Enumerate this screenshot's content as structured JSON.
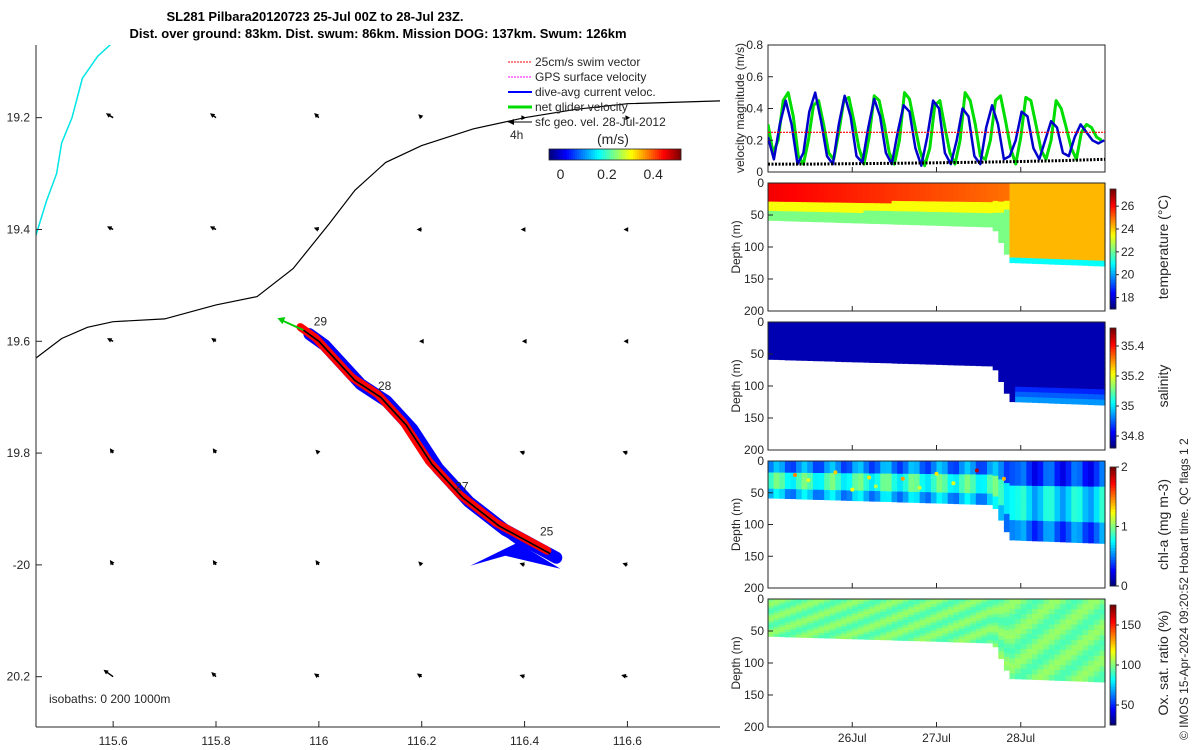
{
  "title_line1": "SL281 Pilbara20120723 25-Jul 00Z to 28-Jul 23Z.",
  "title_line2": "Dist. over ground: 83km. Dist. swum: 86km. Mission DOG: 137km. Swum: 126km",
  "credit": "© IMOS 15-Apr-2024 09:20:52 Hobart time. QC flags 1  2",
  "colors": {
    "swim": "#ff0000",
    "gps": "#ff00ff",
    "diveavg": "#0000ff",
    "net": "#00cc00",
    "sfc": "#000000",
    "coast": "#00e5e5"
  },
  "chart_data": [
    {
      "type": "map",
      "name": "track-map",
      "xlim": [
        115.45,
        116.78
      ],
      "ylim": [
        -20.29,
        -19.07
      ],
      "xticks": [
        115.6,
        115.8,
        116,
        116.2,
        116.4,
        116.6
      ],
      "xtick_labels": [
        "115.6",
        "115.8",
        "116",
        "116.2",
        "116.4",
        "116.6"
      ],
      "yticks": [
        -19.2,
        -19.4,
        -19.6,
        -19.8,
        -20,
        -20.2
      ],
      "ytick_labels": [
        "19.2",
        "19.4",
        "19.6",
        "19.8",
        "-20",
        "20.2"
      ],
      "legend": {
        "items": [
          {
            "label": "25cm/s swim vector",
            "color": "#ff0000"
          },
          {
            "label": "GPS surface velocity",
            "color": "#ff00ff"
          },
          {
            "label": "dive-avg current veloc.",
            "color": "#0000ff"
          },
          {
            "label": "net glider velocity",
            "color": "#00cc00"
          },
          {
            "label": "sfc geo. vel. 28-Jul-2012",
            "color": "#000000"
          }
        ],
        "scale_note": "4h"
      },
      "colorbar": {
        "label": "(m/s)",
        "ticks": [
          "0",
          "0.2",
          "0.4"
        ],
        "range": [
          -0.05,
          0.52
        ]
      },
      "isobath_label": "isobaths: 0   200  1000m",
      "day_labels": [
        {
          "text": "29",
          "lon": 115.99,
          "lat": -19.565
        },
        {
          "text": "28",
          "lon": 116.115,
          "lat": -19.68
        },
        {
          "text": "27",
          "lon": 116.265,
          "lat": -19.86
        },
        {
          "text": "25",
          "lon": 116.43,
          "lat": -19.94
        }
      ],
      "isobath_200": [
        [
          115.45,
          -19.63
        ],
        [
          115.5,
          -19.595
        ],
        [
          115.55,
          -19.575
        ],
        [
          115.6,
          -19.565
        ],
        [
          115.7,
          -19.56
        ],
        [
          115.8,
          -19.535
        ],
        [
          115.88,
          -19.52
        ],
        [
          115.95,
          -19.47
        ],
        [
          116.02,
          -19.39
        ],
        [
          116.07,
          -19.33
        ],
        [
          116.13,
          -19.28
        ],
        [
          116.2,
          -19.25
        ],
        [
          116.3,
          -19.22
        ],
        [
          116.4,
          -19.2
        ],
        [
          116.5,
          -19.185
        ],
        [
          116.6,
          -19.175
        ],
        [
          116.78,
          -19.17
        ]
      ],
      "isobath_0": [
        [
          115.45,
          -19.41
        ],
        [
          115.47,
          -19.35
        ],
        [
          115.49,
          -19.3
        ],
        [
          115.5,
          -19.245
        ],
        [
          115.52,
          -19.2
        ],
        [
          115.54,
          -19.13
        ],
        [
          115.57,
          -19.09
        ],
        [
          115.6,
          -19.065
        ]
      ],
      "track": [
        [
          116.45,
          -19.98
        ],
        [
          116.35,
          -19.93
        ],
        [
          116.28,
          -19.88
        ],
        [
          116.22,
          -19.82
        ],
        [
          116.17,
          -19.75
        ],
        [
          116.12,
          -19.7
        ],
        [
          116.07,
          -19.67
        ],
        [
          116.0,
          -19.6
        ],
        [
          115.97,
          -19.58
        ]
      ],
      "track_blue_width": 12,
      "track_red_width": 8,
      "geo_vectors": {
        "lons": [
          115.6,
          115.8,
          116.0,
          116.2,
          116.4,
          116.6
        ],
        "lats": [
          -19.2,
          -19.4,
          -19.6,
          -19.8,
          -20.0,
          -20.2
        ],
        "u": [
          [
            -0.05,
            -0.04,
            -0.03,
            -0.02,
            0.0,
            0.01
          ],
          [
            -0.04,
            -0.04,
            -0.03,
            -0.03,
            -0.02,
            -0.02
          ],
          [
            -0.04,
            -0.03,
            -0.02,
            -0.01,
            -0.01,
            -0.02
          ],
          [
            -0.02,
            -0.02,
            -0.02,
            -0.02,
            -0.03,
            -0.03
          ],
          [
            -0.02,
            -0.02,
            -0.02,
            -0.02,
            -0.03,
            -0.03
          ],
          [
            -0.07,
            -0.03,
            -0.03,
            -0.03,
            -0.03,
            -0.04
          ]
        ],
        "v": [
          [
            0.03,
            0.03,
            0.03,
            0.02,
            0.0,
            0.0
          ],
          [
            0.02,
            0.02,
            0.01,
            0.0,
            0.0,
            0.0
          ],
          [
            0.02,
            0.02,
            0.01,
            0.0,
            0.0,
            0.0
          ],
          [
            0.03,
            0.03,
            0.02,
            0.02,
            0.01,
            0.01
          ],
          [
            0.03,
            0.03,
            0.03,
            0.02,
            0.01,
            0.01
          ],
          [
            0.05,
            0.03,
            0.02,
            0.02,
            0.01,
            0.01
          ]
        ]
      }
    },
    {
      "type": "line",
      "name": "velocity-magnitude",
      "ylabel": "velocity magnitude (m/s)",
      "ylim": [
        0,
        0.8
      ],
      "yticks": [
        0,
        0.2,
        0.4,
        0.6,
        0.8
      ],
      "ytick_labels": [
        "0",
        "0.2",
        "0.4",
        "0.6",
        "0.8"
      ],
      "xlim": [
        25.0,
        29.0
      ],
      "series": [
        {
          "name": "net glider velocity",
          "color": "#00dd00",
          "x": [
            25.0,
            25.06,
            25.12,
            25.18,
            25.24,
            25.3,
            25.36,
            25.42,
            25.48,
            25.54,
            25.6,
            25.66,
            25.72,
            25.78,
            25.84,
            25.9,
            25.96,
            26.02,
            26.08,
            26.14,
            26.2,
            26.26,
            26.32,
            26.38,
            26.44,
            26.5,
            26.56,
            26.62,
            26.68,
            26.74,
            26.8,
            26.86,
            26.92,
            26.98,
            27.04,
            27.1,
            27.16,
            27.22,
            27.28,
            27.34,
            27.4,
            27.46,
            27.52,
            27.58,
            27.64,
            27.7,
            27.76,
            27.82,
            27.88,
            27.94,
            28.0,
            28.06,
            28.12,
            28.18,
            28.24,
            28.3,
            28.36,
            28.42,
            28.48,
            28.54,
            28.6,
            28.66,
            28.72,
            28.78,
            28.84,
            28.9,
            28.96
          ],
          "values": [
            0.3,
            0.12,
            0.2,
            0.45,
            0.5,
            0.35,
            0.1,
            0.05,
            0.2,
            0.42,
            0.45,
            0.3,
            0.12,
            0.08,
            0.25,
            0.45,
            0.47,
            0.32,
            0.15,
            0.05,
            0.22,
            0.48,
            0.45,
            0.3,
            0.12,
            0.05,
            0.2,
            0.5,
            0.46,
            0.3,
            0.14,
            0.04,
            0.15,
            0.42,
            0.45,
            0.28,
            0.12,
            0.05,
            0.2,
            0.5,
            0.45,
            0.3,
            0.1,
            0.08,
            0.2,
            0.45,
            0.48,
            0.32,
            0.15,
            0.05,
            0.22,
            0.47,
            0.45,
            0.3,
            0.14,
            0.08,
            0.2,
            0.45,
            0.4,
            0.28,
            0.15,
            0.08,
            0.25,
            0.3,
            0.28,
            0.22,
            0.2
          ]
        },
        {
          "name": "dive-avg current veloc.",
          "color": "#0000cc",
          "x": [
            25.0,
            25.07,
            25.14,
            25.21,
            25.28,
            25.35,
            25.42,
            25.49,
            25.56,
            25.63,
            25.7,
            25.77,
            25.84,
            25.91,
            25.98,
            26.05,
            26.12,
            26.19,
            26.26,
            26.33,
            26.4,
            26.47,
            26.54,
            26.61,
            26.68,
            26.75,
            26.82,
            26.89,
            26.96,
            27.03,
            27.1,
            27.17,
            27.24,
            27.31,
            27.38,
            27.45,
            27.52,
            27.59,
            27.66,
            27.73,
            27.8,
            27.87,
            27.94,
            28.01,
            28.08,
            28.15,
            28.22,
            28.29,
            28.36,
            28.43,
            28.5,
            28.57,
            28.64,
            28.71,
            28.78,
            28.85,
            28.92,
            28.99
          ],
          "values": [
            0.22,
            0.08,
            0.3,
            0.45,
            0.3,
            0.05,
            0.12,
            0.38,
            0.5,
            0.32,
            0.1,
            0.05,
            0.3,
            0.48,
            0.35,
            0.1,
            0.06,
            0.28,
            0.46,
            0.35,
            0.12,
            0.05,
            0.25,
            0.42,
            0.38,
            0.15,
            0.04,
            0.22,
            0.45,
            0.4,
            0.12,
            0.05,
            0.2,
            0.4,
            0.35,
            0.1,
            0.05,
            0.28,
            0.42,
            0.3,
            0.08,
            0.1,
            0.2,
            0.38,
            0.35,
            0.15,
            0.08,
            0.2,
            0.32,
            0.28,
            0.12,
            0.1,
            0.22,
            0.3,
            0.25,
            0.2,
            0.18,
            0.2
          ]
        },
        {
          "name": "25cm/s swim vector",
          "color": "#ff0000",
          "x": [
            25.0,
            29.0
          ],
          "values": [
            0.25,
            0.25
          ]
        },
        {
          "name": "sfc geo. vel.",
          "color": "#000000",
          "x": [
            25.0,
            25.5,
            26.0,
            26.5,
            27.0,
            27.5,
            28.0,
            28.5,
            29.0
          ],
          "values": [
            0.05,
            0.05,
            0.052,
            0.055,
            0.058,
            0.062,
            0.066,
            0.072,
            0.08
          ]
        }
      ]
    },
    {
      "type": "heatmap",
      "name": "temperature-section",
      "ylabel": "Depth (m)",
      "cbar_label": "temperature (°C)",
      "cbar_range": [
        17,
        27.5
      ],
      "cbar_ticks": [
        "18",
        "20",
        "22",
        "24",
        "26"
      ],
      "cbar_tick_values": [
        18,
        20,
        22,
        24,
        26
      ],
      "ylim": [
        0,
        200
      ],
      "yticks": [
        "0",
        "50",
        "100",
        "150",
        "200"
      ],
      "surface_value": 25.5,
      "deep_value": 22.5,
      "mixed_layer_depth_m": 45,
      "near_bottom_value": 21
    },
    {
      "type": "heatmap",
      "name": "salinity-section",
      "ylabel": "Depth (m)",
      "cbar_label": "salinity",
      "cbar_range": [
        34.72,
        35.52
      ],
      "cbar_ticks": [
        "34.8",
        "35",
        "35.2",
        "35.4"
      ],
      "cbar_tick_values": [
        34.8,
        35.0,
        35.2,
        35.4
      ],
      "ylim": [
        0,
        200
      ],
      "yticks": [
        "0",
        "50",
        "100",
        "150",
        "200"
      ],
      "fill_value": 34.76,
      "near_bottom_value": 34.95
    },
    {
      "type": "heatmap",
      "name": "chla-section",
      "ylabel": "Depth (m)",
      "cbar_label": "chl-a (mg m-3)",
      "cbar_range": [
        0,
        2
      ],
      "cbar_ticks": [
        "0",
        "1",
        "2"
      ],
      "cbar_tick_values": [
        0,
        1,
        2
      ],
      "ylim": [
        0,
        200
      ],
      "yticks": [
        "0",
        "50",
        "100",
        "150",
        "200"
      ],
      "surface_value": 0.35,
      "mid_value": 0.85,
      "deep_value": 0.6
    },
    {
      "type": "heatmap",
      "name": "oxygen-section",
      "ylabel": "Depth (m)",
      "cbar_label": "Ox. sat. ratio (%)",
      "cbar_range": [
        25,
        175
      ],
      "cbar_ticks": [
        "50",
        "100",
        "150"
      ],
      "cbar_tick_values": [
        50,
        100,
        150
      ],
      "ylim": [
        0,
        200
      ],
      "yticks": [
        "0",
        "50",
        "100",
        "150",
        "200"
      ],
      "fill_value": 98,
      "xticks": [
        26,
        27,
        28
      ],
      "xtick_labels": [
        "26Jul",
        "27Jul",
        "28Jul"
      ]
    }
  ]
}
